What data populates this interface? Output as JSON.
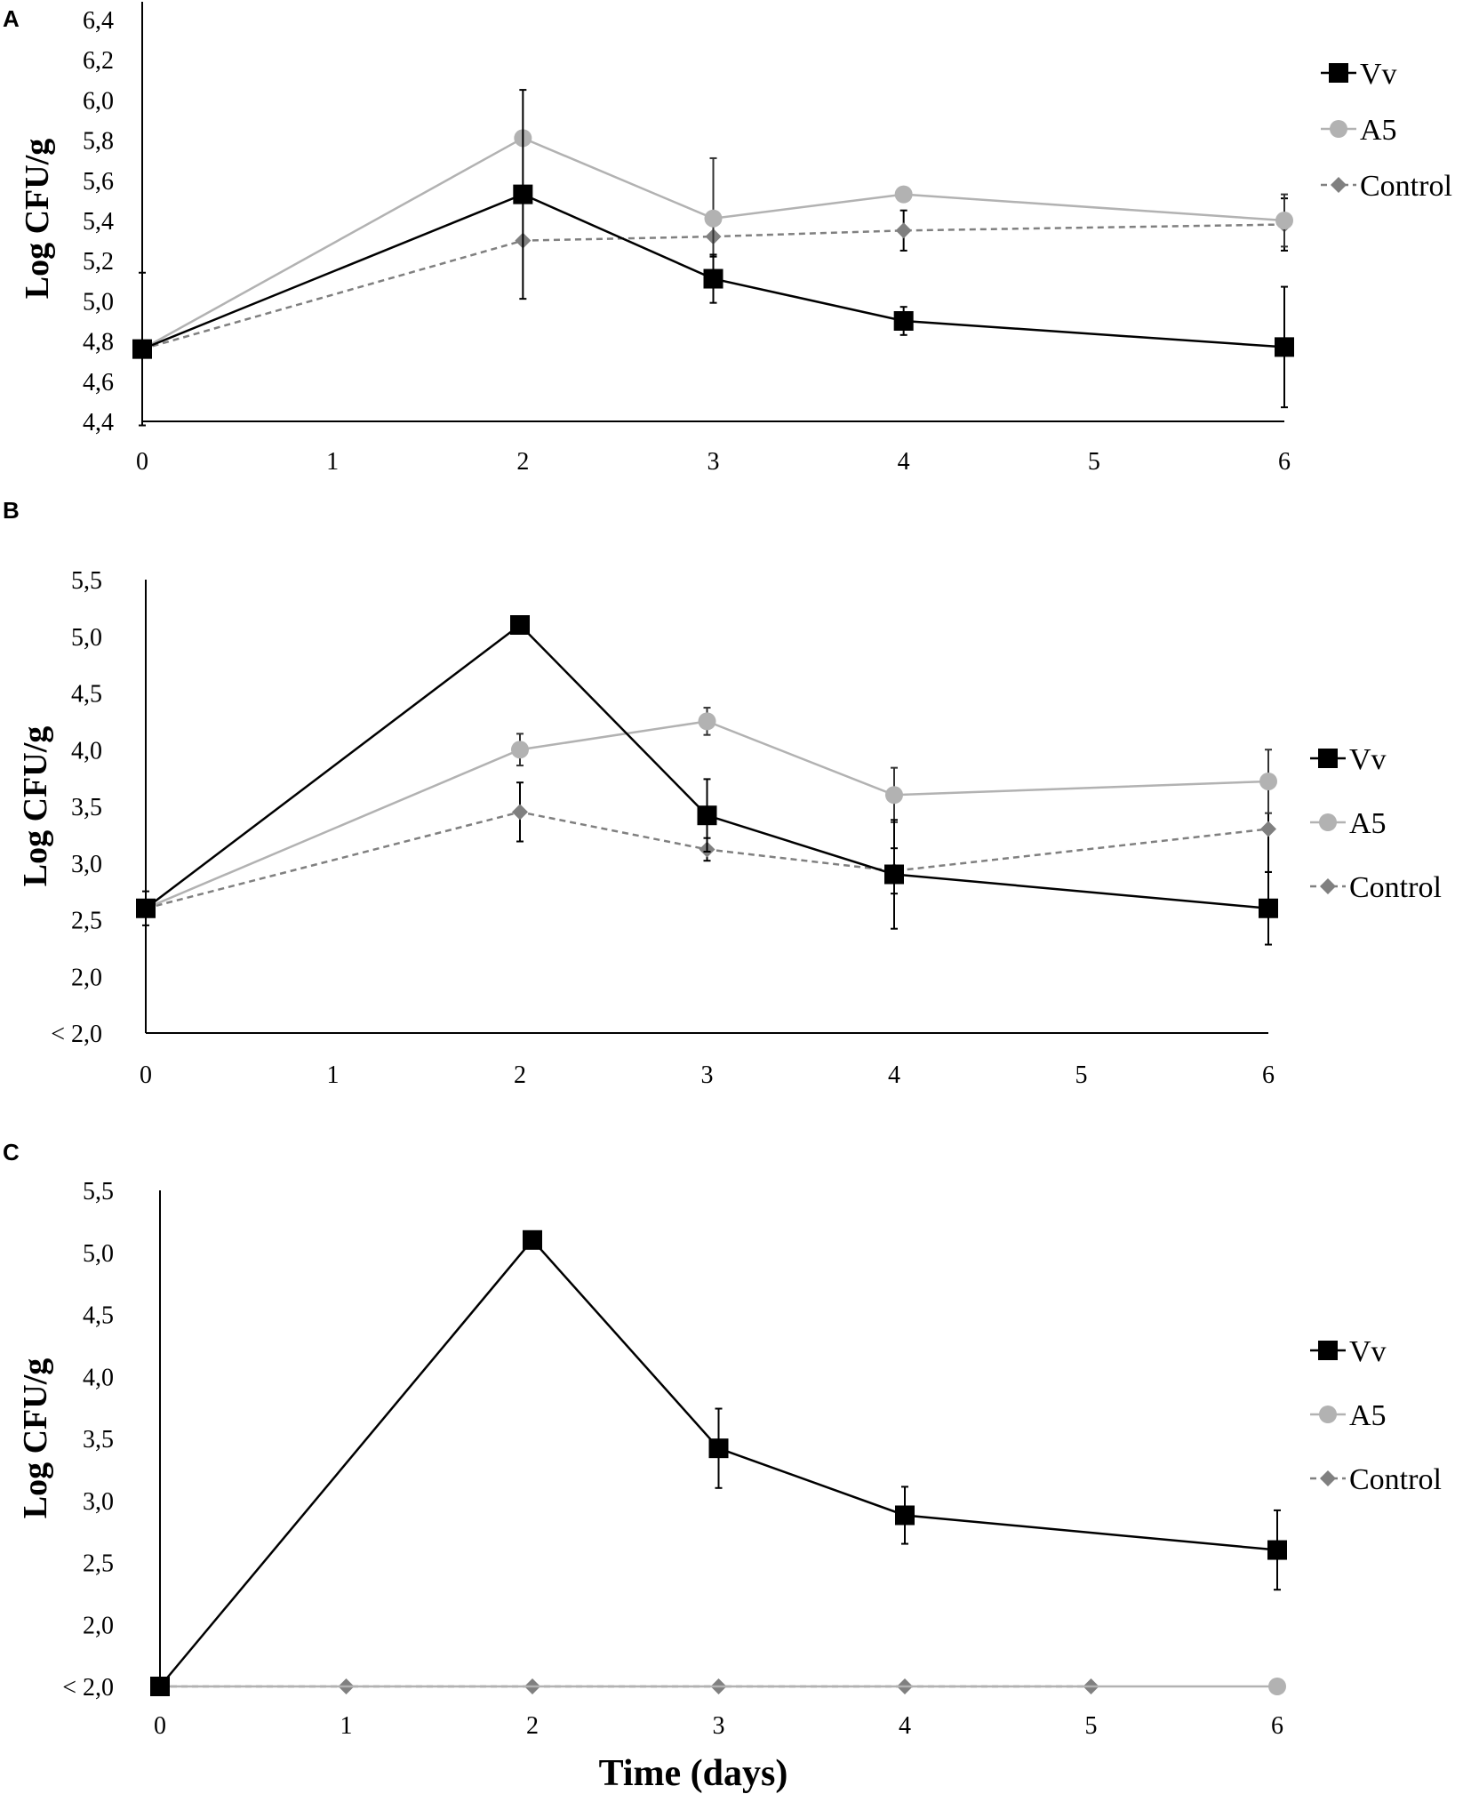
{
  "chart_data": [
    {
      "panel": "A",
      "type": "line",
      "x": [
        0,
        1,
        2,
        3,
        4,
        5,
        6
      ],
      "xticks": [
        "0",
        "1",
        "2",
        "3",
        "4",
        "5",
        "6"
      ],
      "yticks": [
        "4,4",
        "4,6",
        "4,8",
        "5,0",
        "5,2",
        "5,4",
        "5,6",
        "5,8",
        "6,0",
        "6,2",
        "6,4"
      ],
      "ylim": [
        4.4,
        6.5
      ],
      "ylabel": "Log CFU/g",
      "xlabel": "",
      "series": [
        {
          "name": "Vv",
          "color": "#000000",
          "marker": "square",
          "dash": false,
          "points": [
            [
              0,
              4.76,
              0.38
            ],
            [
              2,
              5.53,
              0.52
            ],
            [
              3,
              5.11,
              0.12
            ],
            [
              4,
              4.9,
              0.07
            ],
            [
              6,
              4.77,
              0.3
            ]
          ]
        },
        {
          "name": "A5",
          "color": "#b2b2b2",
          "marker": "circle",
          "dash": false,
          "points": [
            [
              0,
              4.76,
              0
            ],
            [
              2,
              5.81,
              0
            ],
            [
              3,
              5.41,
              0.3
            ],
            [
              4,
              5.53,
              0
            ],
            [
              6,
              5.4,
              0.13
            ]
          ]
        },
        {
          "name": "Control",
          "color": "#808080",
          "marker": "diamond",
          "dash": true,
          "points": [
            [
              0,
              4.76,
              0
            ],
            [
              2,
              5.3,
              0
            ],
            [
              3,
              5.32,
              0.1
            ],
            [
              4,
              5.35,
              0.1
            ],
            [
              6,
              5.38,
              0.13
            ]
          ]
        }
      ]
    },
    {
      "panel": "B",
      "type": "line",
      "x": [
        0,
        1,
        2,
        3,
        4,
        5,
        6
      ],
      "xticks": [
        "0",
        "1",
        "2",
        "3",
        "4",
        "5",
        "6"
      ],
      "yticks": [
        "< 2,0",
        "2,0",
        "2,5",
        "3,0",
        "3,5",
        "4,0",
        "4,5",
        "5,0",
        "5,5"
      ],
      "ylim": [
        1.5,
        5.5
      ],
      "ylabel": "Log CFU/g",
      "xlabel": "",
      "series": [
        {
          "name": "Vv",
          "color": "#000000",
          "marker": "square",
          "dash": false,
          "points": [
            [
              0,
              2.6,
              0.15
            ],
            [
              2,
              5.1,
              0
            ],
            [
              3,
              3.42,
              0.32
            ],
            [
              4,
              2.9,
              0.48
            ],
            [
              6,
              2.6,
              0.32
            ]
          ]
        },
        {
          "name": "A5",
          "color": "#b2b2b2",
          "marker": "circle",
          "dash": false,
          "points": [
            [
              0,
              2.6,
              0
            ],
            [
              2,
              4.0,
              0.14
            ],
            [
              3,
              4.25,
              0.12
            ],
            [
              4,
              3.6,
              0.24
            ],
            [
              6,
              3.72,
              0.28
            ]
          ]
        },
        {
          "name": "Control",
          "color": "#808080",
          "marker": "diamond",
          "dash": true,
          "points": [
            [
              0,
              2.6,
              0
            ],
            [
              2,
              3.45,
              0.26
            ],
            [
              3,
              3.12,
              0.1
            ],
            [
              4,
              2.93,
              0.2
            ],
            [
              6,
              3.3,
              0.38
            ]
          ]
        }
      ]
    },
    {
      "panel": "C",
      "type": "line",
      "x": [
        0,
        1,
        2,
        3,
        4,
        5,
        6
      ],
      "xticks": [
        "0",
        "1",
        "2",
        "3",
        "4",
        "5",
        "6"
      ],
      "yticks": [
        "< 2,0",
        "2,0",
        "2,5",
        "3,0",
        "3,5",
        "4,0",
        "4,5",
        "5,0",
        "5,5"
      ],
      "ylim": [
        1.5,
        5.5
      ],
      "ylabel": "Log CFU/g",
      "xlabel": "Time (days)",
      "series": [
        {
          "name": "Vv",
          "color": "#000000",
          "marker": "square",
          "dash": false,
          "points": [
            [
              0,
              1.5,
              0
            ],
            [
              2,
              5.1,
              0
            ],
            [
              3,
              3.42,
              0.32
            ],
            [
              4,
              2.88,
              0.23
            ],
            [
              6,
              2.6,
              0.32
            ]
          ]
        },
        {
          "name": "A5",
          "color": "#b2b2b2",
          "marker": "circle",
          "dash": false,
          "points": [
            [
              0,
              1.5,
              0
            ],
            [
              6,
              1.5,
              0
            ]
          ]
        },
        {
          "name": "Control",
          "color": "#808080",
          "marker": "diamond",
          "dash": true,
          "points": [
            [
              0,
              1.5,
              0
            ],
            [
              1,
              1.5,
              0
            ],
            [
              2,
              1.5,
              0
            ],
            [
              3,
              1.5,
              0
            ],
            [
              4,
              1.5,
              0
            ],
            [
              5,
              1.5,
              0
            ]
          ]
        }
      ]
    }
  ]
}
